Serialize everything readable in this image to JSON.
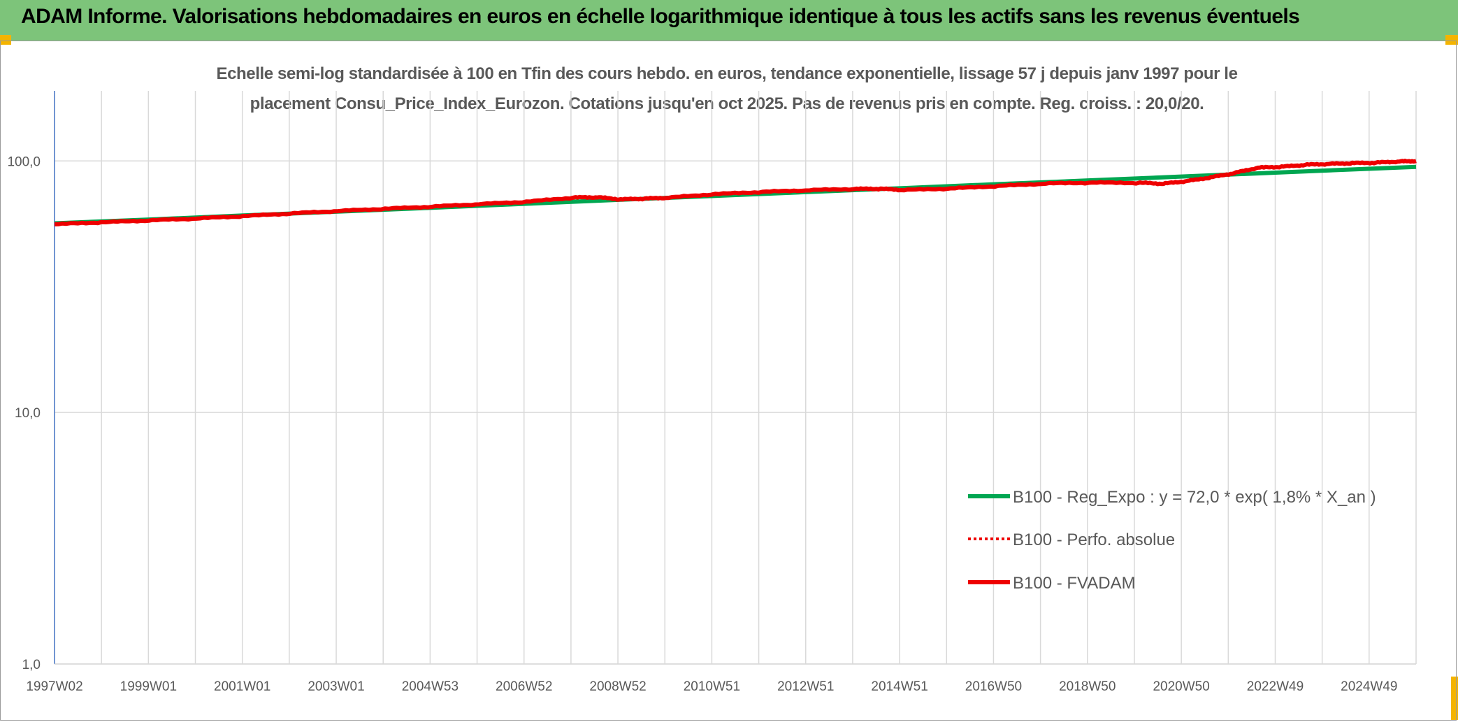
{
  "header": {
    "title": "ADAM Informe. Valorisations hebdomadaires en euros en échelle logarithmique identique à tous les actifs sans les revenus éventuels"
  },
  "colors": {
    "banner": "#7dc47a",
    "accent_corner": "#f4b400",
    "series_reg": "#00a651",
    "series_fvadam": "#ee0000",
    "series_perfo": "#ee0000",
    "grid": "#d9d9d9",
    "axis": "#4472c4"
  },
  "chart_data": {
    "type": "line",
    "title_line1": "Echelle semi-log standardisée à 100 en Tfin des cours hebdo. en euros, tendance exponentielle, lissage 57 j depuis janv 1997 pour le",
    "title_line2": "placement Consu_Price_Index_Eurozon. Cotations jusqu'en oct 2025. Pas de revenus pris en compte. Reg. croiss. : 20,0/20.",
    "y_scale": "log",
    "ylim": [
      1,
      190
    ],
    "xlim": [
      1997.0,
      2025.85
    ],
    "grid": true,
    "legend_position": "bottom-right",
    "y_ticks": [
      {
        "value": 1,
        "label": "1,0"
      },
      {
        "value": 10,
        "label": "10,0"
      },
      {
        "value": 100,
        "label": "100,0"
      }
    ],
    "x_tick_labels": [
      "1997W02",
      "1999W01",
      "2001W01",
      "2003W01",
      "2004W53",
      "2006W52",
      "2008W52",
      "2010W51",
      "2012W51",
      "2014W51",
      "2016W50",
      "2018W50",
      "2020W50",
      "2022W49",
      "2024W49"
    ],
    "legend": [
      {
        "label": "B100 - Reg_Expo : y = 72,0 * exp( 1,8% *  X_an )",
        "style": "solid-green"
      },
      {
        "label": "B100 - Perfo. absolue",
        "style": "dotted-red"
      },
      {
        "label": "B100 - FVADAM",
        "style": "solid-red"
      }
    ],
    "series": [
      {
        "name": "B100 - Reg_Expo : y = 72,0 * exp( 1,8% *  X_an )",
        "x": [
          1997.0,
          1999.0,
          2001.0,
          2003.0,
          2005.0,
          2007.0,
          2009.0,
          2011.0,
          2013.0,
          2015.0,
          2017.0,
          2019.0,
          2021.0,
          2023.0,
          2025.85
        ],
        "values": [
          56.5,
          58.5,
          60.7,
          62.9,
          65.2,
          67.6,
          70.1,
          72.6,
          75.3,
          78.0,
          80.9,
          83.8,
          86.9,
          90.1,
          94.8
        ]
      },
      {
        "name": "B100 - FVADAM",
        "x": [
          1997.0,
          1998.0,
          1999.0,
          2000.0,
          2001.0,
          2002.0,
          2003.0,
          2004.0,
          2005.0,
          2006.0,
          2007.0,
          2008.0,
          2008.5,
          2009.0,
          2009.5,
          2010.0,
          2011.0,
          2012.0,
          2013.0,
          2014.0,
          2014.5,
          2015.0,
          2016.0,
          2017.0,
          2018.0,
          2019.0,
          2020.0,
          2020.5,
          2021.0,
          2021.5,
          2022.0,
          2022.5,
          2023.0,
          2023.5,
          2024.0,
          2024.5,
          2025.0,
          2025.5,
          2025.85
        ],
        "values": [
          56.0,
          57.0,
          58.0,
          59.0,
          60.3,
          61.8,
          63.2,
          64.5,
          65.8,
          67.3,
          68.8,
          71.5,
          71.7,
          70.3,
          70.8,
          71.4,
          73.8,
          75.3,
          76.5,
          77.4,
          77.5,
          76.6,
          77.7,
          79.5,
          81.3,
          82.0,
          81.8,
          81.2,
          83.2,
          86.0,
          89.5,
          94.0,
          94.8,
          96.5,
          97.3,
          98.0,
          98.4,
          99.5,
          100.0
        ]
      }
    ]
  }
}
